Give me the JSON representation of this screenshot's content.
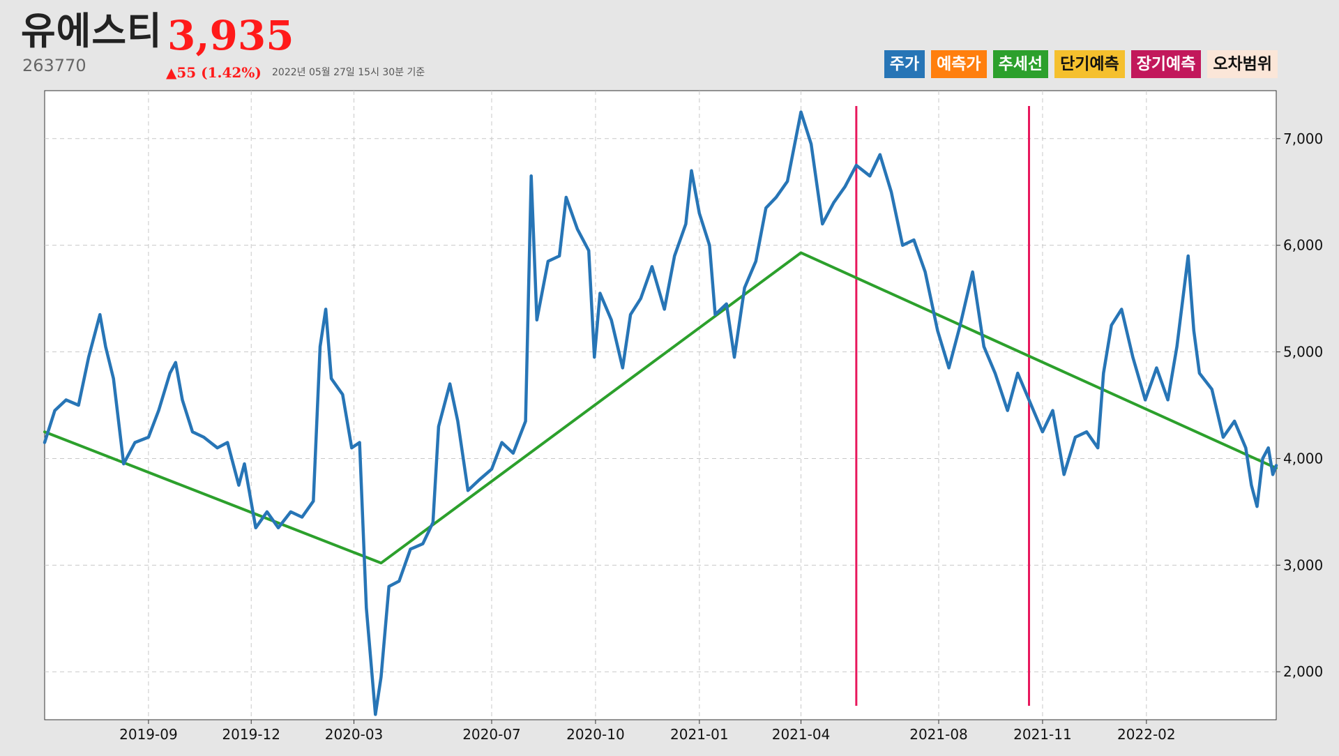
{
  "header": {
    "name": "유에스티",
    "price": "3,935",
    "code": "263770",
    "change": "▲55 (1.42%)",
    "timestamp": "2022년 05월 27일 15시 30분 기준"
  },
  "legend": [
    {
      "label": "주가",
      "color": "#2775b6",
      "dark": false
    },
    {
      "label": "예측가",
      "color": "#ff7f0e",
      "dark": false
    },
    {
      "label": "추세선",
      "color": "#2ca02c",
      "dark": false
    },
    {
      "label": "단기예측",
      "color": "#f5c02e",
      "dark": true
    },
    {
      "label": "장기예측",
      "color": "#c2185b",
      "dark": false
    },
    {
      "label": "오차범위",
      "color": "#fbe6d8",
      "dark": true
    }
  ],
  "chart_data": {
    "type": "line",
    "title": "",
    "xlabel": "",
    "ylabel": "",
    "x_ticks": [
      "2019-09",
      "2019-12",
      "2020-03",
      "2020-07",
      "2020-10",
      "2021-01",
      "2021-04",
      "2021-08",
      "2021-11",
      "2022-02"
    ],
    "y_ticks": [
      "2,000",
      "3,000",
      "4,000",
      "5,000",
      "6,000",
      "7,000"
    ],
    "ylim": [
      1550,
      7450
    ],
    "xlim": [
      "2019-06-01",
      "2022-05-27"
    ],
    "grid": true,
    "y_axis_side": "right",
    "series": [
      {
        "name": "주가",
        "color": "#2775b6",
        "points": [
          [
            "2019-06-01",
            4150
          ],
          [
            "2019-06-10",
            4450
          ],
          [
            "2019-06-20",
            4550
          ],
          [
            "2019-07-01",
            4500
          ],
          [
            "2019-07-10",
            4950
          ],
          [
            "2019-07-20",
            5350
          ],
          [
            "2019-07-25",
            5050
          ],
          [
            "2019-08-01",
            4750
          ],
          [
            "2019-08-10",
            3950
          ],
          [
            "2019-08-20",
            4150
          ],
          [
            "2019-09-01",
            4200
          ],
          [
            "2019-09-10",
            4450
          ],
          [
            "2019-09-20",
            4800
          ],
          [
            "2019-09-25",
            4900
          ],
          [
            "2019-10-01",
            4550
          ],
          [
            "2019-10-10",
            4250
          ],
          [
            "2019-10-20",
            4200
          ],
          [
            "2019-11-01",
            4100
          ],
          [
            "2019-11-10",
            4150
          ],
          [
            "2019-11-20",
            3750
          ],
          [
            "2019-11-25",
            3950
          ],
          [
            "2019-12-05",
            3350
          ],
          [
            "2019-12-15",
            3500
          ],
          [
            "2019-12-25",
            3350
          ],
          [
            "2020-01-05",
            3500
          ],
          [
            "2020-01-15",
            3450
          ],
          [
            "2020-01-25",
            3600
          ],
          [
            "2020-01-31",
            5050
          ],
          [
            "2020-02-05",
            5400
          ],
          [
            "2020-02-10",
            4750
          ],
          [
            "2020-02-20",
            4600
          ],
          [
            "2020-02-28",
            4100
          ],
          [
            "2020-03-06",
            4150
          ],
          [
            "2020-03-12",
            2600
          ],
          [
            "2020-03-20",
            1600
          ],
          [
            "2020-03-25",
            1950
          ],
          [
            "2020-04-01",
            2800
          ],
          [
            "2020-04-10",
            2850
          ],
          [
            "2020-04-20",
            3150
          ],
          [
            "2020-05-01",
            3200
          ],
          [
            "2020-05-10",
            3400
          ],
          [
            "2020-05-15",
            4300
          ],
          [
            "2020-05-25",
            4700
          ],
          [
            "2020-06-01",
            4350
          ],
          [
            "2020-06-10",
            3700
          ],
          [
            "2020-06-20",
            3800
          ],
          [
            "2020-07-01",
            3900
          ],
          [
            "2020-07-10",
            4150
          ],
          [
            "2020-07-20",
            4050
          ],
          [
            "2020-07-31",
            4350
          ],
          [
            "2020-08-05",
            6650
          ],
          [
            "2020-08-10",
            5300
          ],
          [
            "2020-08-20",
            5850
          ],
          [
            "2020-08-30",
            5900
          ],
          [
            "2020-09-05",
            6450
          ],
          [
            "2020-09-15",
            6150
          ],
          [
            "2020-09-25",
            5950
          ],
          [
            "2020-09-30",
            4950
          ],
          [
            "2020-10-05",
            5550
          ],
          [
            "2020-10-15",
            5300
          ],
          [
            "2020-10-25",
            4850
          ],
          [
            "2020-11-01",
            5350
          ],
          [
            "2020-11-10",
            5500
          ],
          [
            "2020-11-20",
            5800
          ],
          [
            "2020-12-01",
            5400
          ],
          [
            "2020-12-10",
            5900
          ],
          [
            "2020-12-20",
            6200
          ],
          [
            "2020-12-25",
            6700
          ],
          [
            "2021-01-01",
            6300
          ],
          [
            "2021-01-10",
            6000
          ],
          [
            "2021-01-15",
            5350
          ],
          [
            "2021-01-25",
            5450
          ],
          [
            "2021-02-01",
            4950
          ],
          [
            "2021-02-10",
            5600
          ],
          [
            "2021-02-20",
            5850
          ],
          [
            "2021-03-01",
            6350
          ],
          [
            "2021-03-10",
            6450
          ],
          [
            "2021-03-20",
            6600
          ],
          [
            "2021-04-01",
            7250
          ],
          [
            "2021-04-10",
            6950
          ],
          [
            "2021-04-20",
            6200
          ],
          [
            "2021-04-30",
            6400
          ],
          [
            "2021-05-10",
            6550
          ],
          [
            "2021-05-20",
            6750
          ],
          [
            "2021-06-01",
            6650
          ],
          [
            "2021-06-10",
            6850
          ],
          [
            "2021-06-20",
            6500
          ],
          [
            "2021-06-30",
            6000
          ],
          [
            "2021-07-10",
            6050
          ],
          [
            "2021-07-20",
            5750
          ],
          [
            "2021-07-31",
            5200
          ],
          [
            "2021-08-10",
            4850
          ],
          [
            "2021-08-20",
            5250
          ],
          [
            "2021-08-31",
            5750
          ],
          [
            "2021-09-10",
            5050
          ],
          [
            "2021-09-20",
            4800
          ],
          [
            "2021-10-01",
            4450
          ],
          [
            "2021-10-10",
            4800
          ],
          [
            "2021-10-20",
            4550
          ],
          [
            "2021-11-01",
            4250
          ],
          [
            "2021-11-10",
            4450
          ],
          [
            "2021-11-20",
            3850
          ],
          [
            "2021-11-30",
            4200
          ],
          [
            "2021-12-10",
            4250
          ],
          [
            "2021-12-20",
            4100
          ],
          [
            "2021-12-25",
            4800
          ],
          [
            "2022-01-01",
            5250
          ],
          [
            "2022-01-10",
            5400
          ],
          [
            "2022-01-20",
            4950
          ],
          [
            "2022-01-31",
            4550
          ],
          [
            "2022-02-10",
            4850
          ],
          [
            "2022-02-20",
            4550
          ],
          [
            "2022-02-28",
            5050
          ],
          [
            "2022-03-10",
            5900
          ],
          [
            "2022-03-15",
            5200
          ],
          [
            "2022-03-20",
            4800
          ],
          [
            "2022-03-31",
            4650
          ],
          [
            "2022-04-10",
            4200
          ],
          [
            "2022-04-20",
            4350
          ],
          [
            "2022-04-30",
            4100
          ],
          [
            "2022-05-05",
            3750
          ],
          [
            "2022-05-10",
            3550
          ],
          [
            "2022-05-15",
            4000
          ],
          [
            "2022-05-20",
            4100
          ],
          [
            "2022-05-24",
            3850
          ],
          [
            "2022-05-27",
            3935
          ]
        ]
      },
      {
        "name": "추세선",
        "color": "#2ca02c",
        "points": [
          [
            "2019-06-01",
            4250
          ],
          [
            "2020-03-25",
            3020
          ],
          [
            "2021-04-01",
            5930
          ],
          [
            "2022-05-27",
            3910
          ]
        ]
      }
    ],
    "vertical_markers": [
      {
        "date": "2021-05-20",
        "color": "#e8185d"
      },
      {
        "date": "2021-10-20",
        "color": "#e8185d"
      }
    ]
  }
}
